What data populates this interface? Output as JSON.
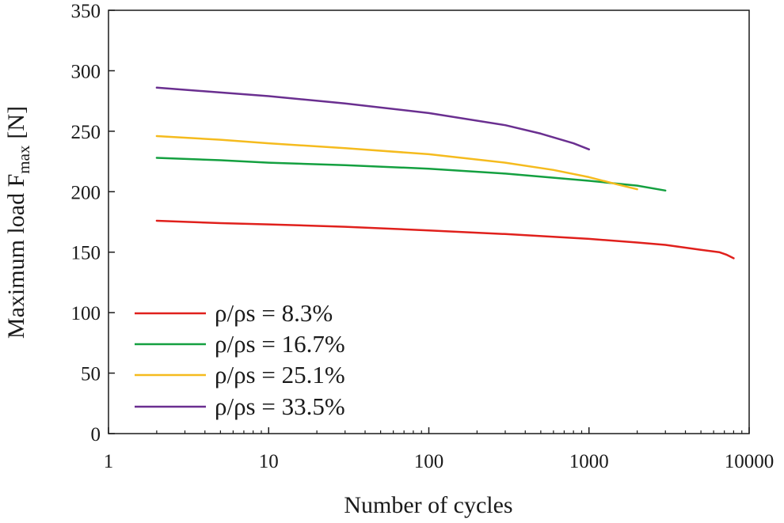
{
  "chart_data": {
    "type": "line",
    "title": "",
    "xlabel": "Number of cycles",
    "ylabel": "Maximum load F",
    "ylabel_subscript": "max",
    "ylabel_unit": "[N]",
    "xscale": "log",
    "xlim": [
      1,
      10000
    ],
    "ylim": [
      0,
      350
    ],
    "xticks": [
      1,
      10,
      100,
      1000,
      10000
    ],
    "xtick_labels": [
      "1",
      "10",
      "100",
      "1000",
      "10000"
    ],
    "yticks": [
      0,
      50,
      100,
      150,
      200,
      250,
      300,
      350
    ],
    "ytick_labels": [
      "0",
      "50",
      "100",
      "150",
      "200",
      "250",
      "300",
      "350"
    ],
    "grid": false,
    "legend_position": "bottom-left",
    "series": [
      {
        "name": "ρ/ρs = 8.3%",
        "color": "#e0201c",
        "x": [
          2,
          5,
          10,
          30,
          100,
          300,
          1000,
          2000,
          3000,
          5000,
          6500,
          7200,
          8000
        ],
        "y": [
          176,
          174,
          173,
          171,
          168,
          165,
          161,
          158,
          156,
          152,
          150,
          148,
          145
        ]
      },
      {
        "name": "ρ/ρs = 16.7%",
        "color": "#14a040",
        "x": [
          2,
          5,
          10,
          30,
          100,
          300,
          1000,
          2000,
          3000
        ],
        "y": [
          228,
          226,
          224,
          222,
          219,
          215,
          209,
          205,
          201
        ]
      },
      {
        "name": "ρ/ρs = 25.1%",
        "color": "#f5bb1e",
        "x": [
          2,
          5,
          10,
          30,
          100,
          300,
          600,
          1000,
          1500,
          2000
        ],
        "y": [
          246,
          243,
          240,
          236,
          231,
          224,
          218,
          212,
          206,
          202
        ]
      },
      {
        "name": "ρ/ρs = 33.5%",
        "color": "#6a2f90",
        "x": [
          2,
          4,
          10,
          30,
          100,
          300,
          500,
          800,
          1000
        ],
        "y": [
          286,
          283,
          279,
          273,
          265,
          255,
          248,
          240,
          235
        ]
      }
    ]
  }
}
